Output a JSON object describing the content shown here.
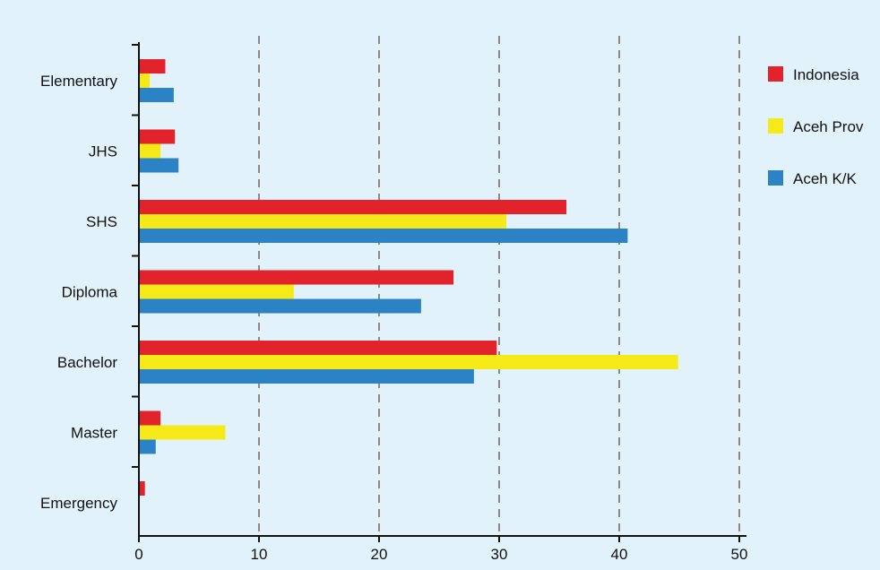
{
  "chart_data": {
    "type": "bar",
    "orientation": "horizontal",
    "title": "",
    "categories": [
      "Elementary",
      "JHS",
      "SHS",
      "Diploma",
      "Bachelor",
      "Master",
      "Emergency"
    ],
    "series": [
      {
        "name": "Indonesia",
        "color": "#e3232b",
        "values": [
          2.2,
          3.0,
          35.6,
          26.2,
          29.8,
          1.8,
          0.5
        ]
      },
      {
        "name": "Aceh Prov",
        "color": "#f5ea18",
        "values": [
          0.9,
          1.8,
          30.6,
          12.9,
          44.9,
          7.2,
          0.0
        ]
      },
      {
        "name": "Aceh K/K",
        "color": "#2b82c4",
        "values": [
          2.9,
          3.3,
          40.7,
          23.5,
          27.9,
          1.4,
          0.0
        ]
      }
    ],
    "xlim": [
      0,
      50
    ],
    "x_ticks": [
      "0",
      "10",
      "20",
      "30",
      "40",
      "50"
    ],
    "grid": "vertical dashed",
    "legend_position": "right"
  }
}
